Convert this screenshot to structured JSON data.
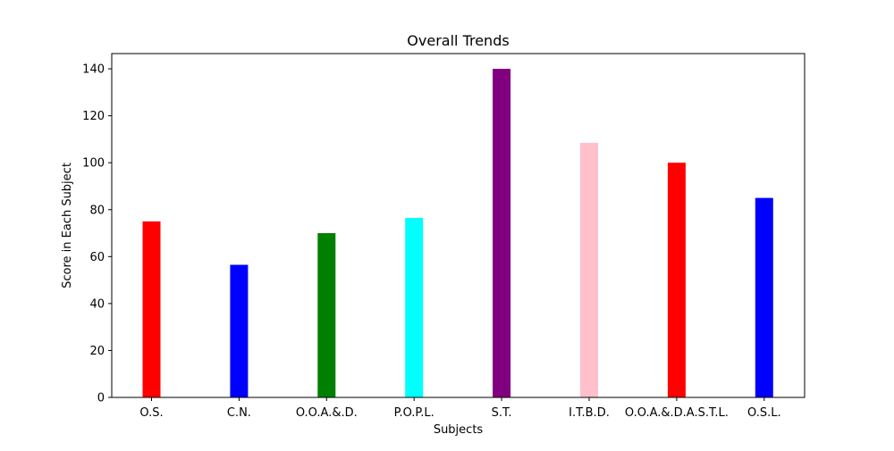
{
  "chart_data": {
    "type": "bar",
    "title": "Overall Trends",
    "xlabel": "Subjects",
    "ylabel": "Score in Each Subject",
    "categories": [
      "O.S.",
      "C.N.",
      "O.O.A.&.D.",
      "P.O.P.L.",
      "S.T.",
      "I.T.B.D.",
      "O.O.A.&.D.A.S.T.L.",
      "O.S.L."
    ],
    "values": [
      75,
      56.5,
      70,
      76.5,
      140,
      108.5,
      100,
      85
    ],
    "colors": [
      "#ff0000",
      "#0000ff",
      "#008000",
      "#00ffff",
      "#800080",
      "#ffc0cb",
      "#ff0000",
      "#0000ff"
    ],
    "ylim": [
      0,
      146.5
    ],
    "yticks": [
      0,
      20,
      40,
      60,
      80,
      100,
      120,
      140
    ],
    "grid": false,
    "legend": "none"
  }
}
